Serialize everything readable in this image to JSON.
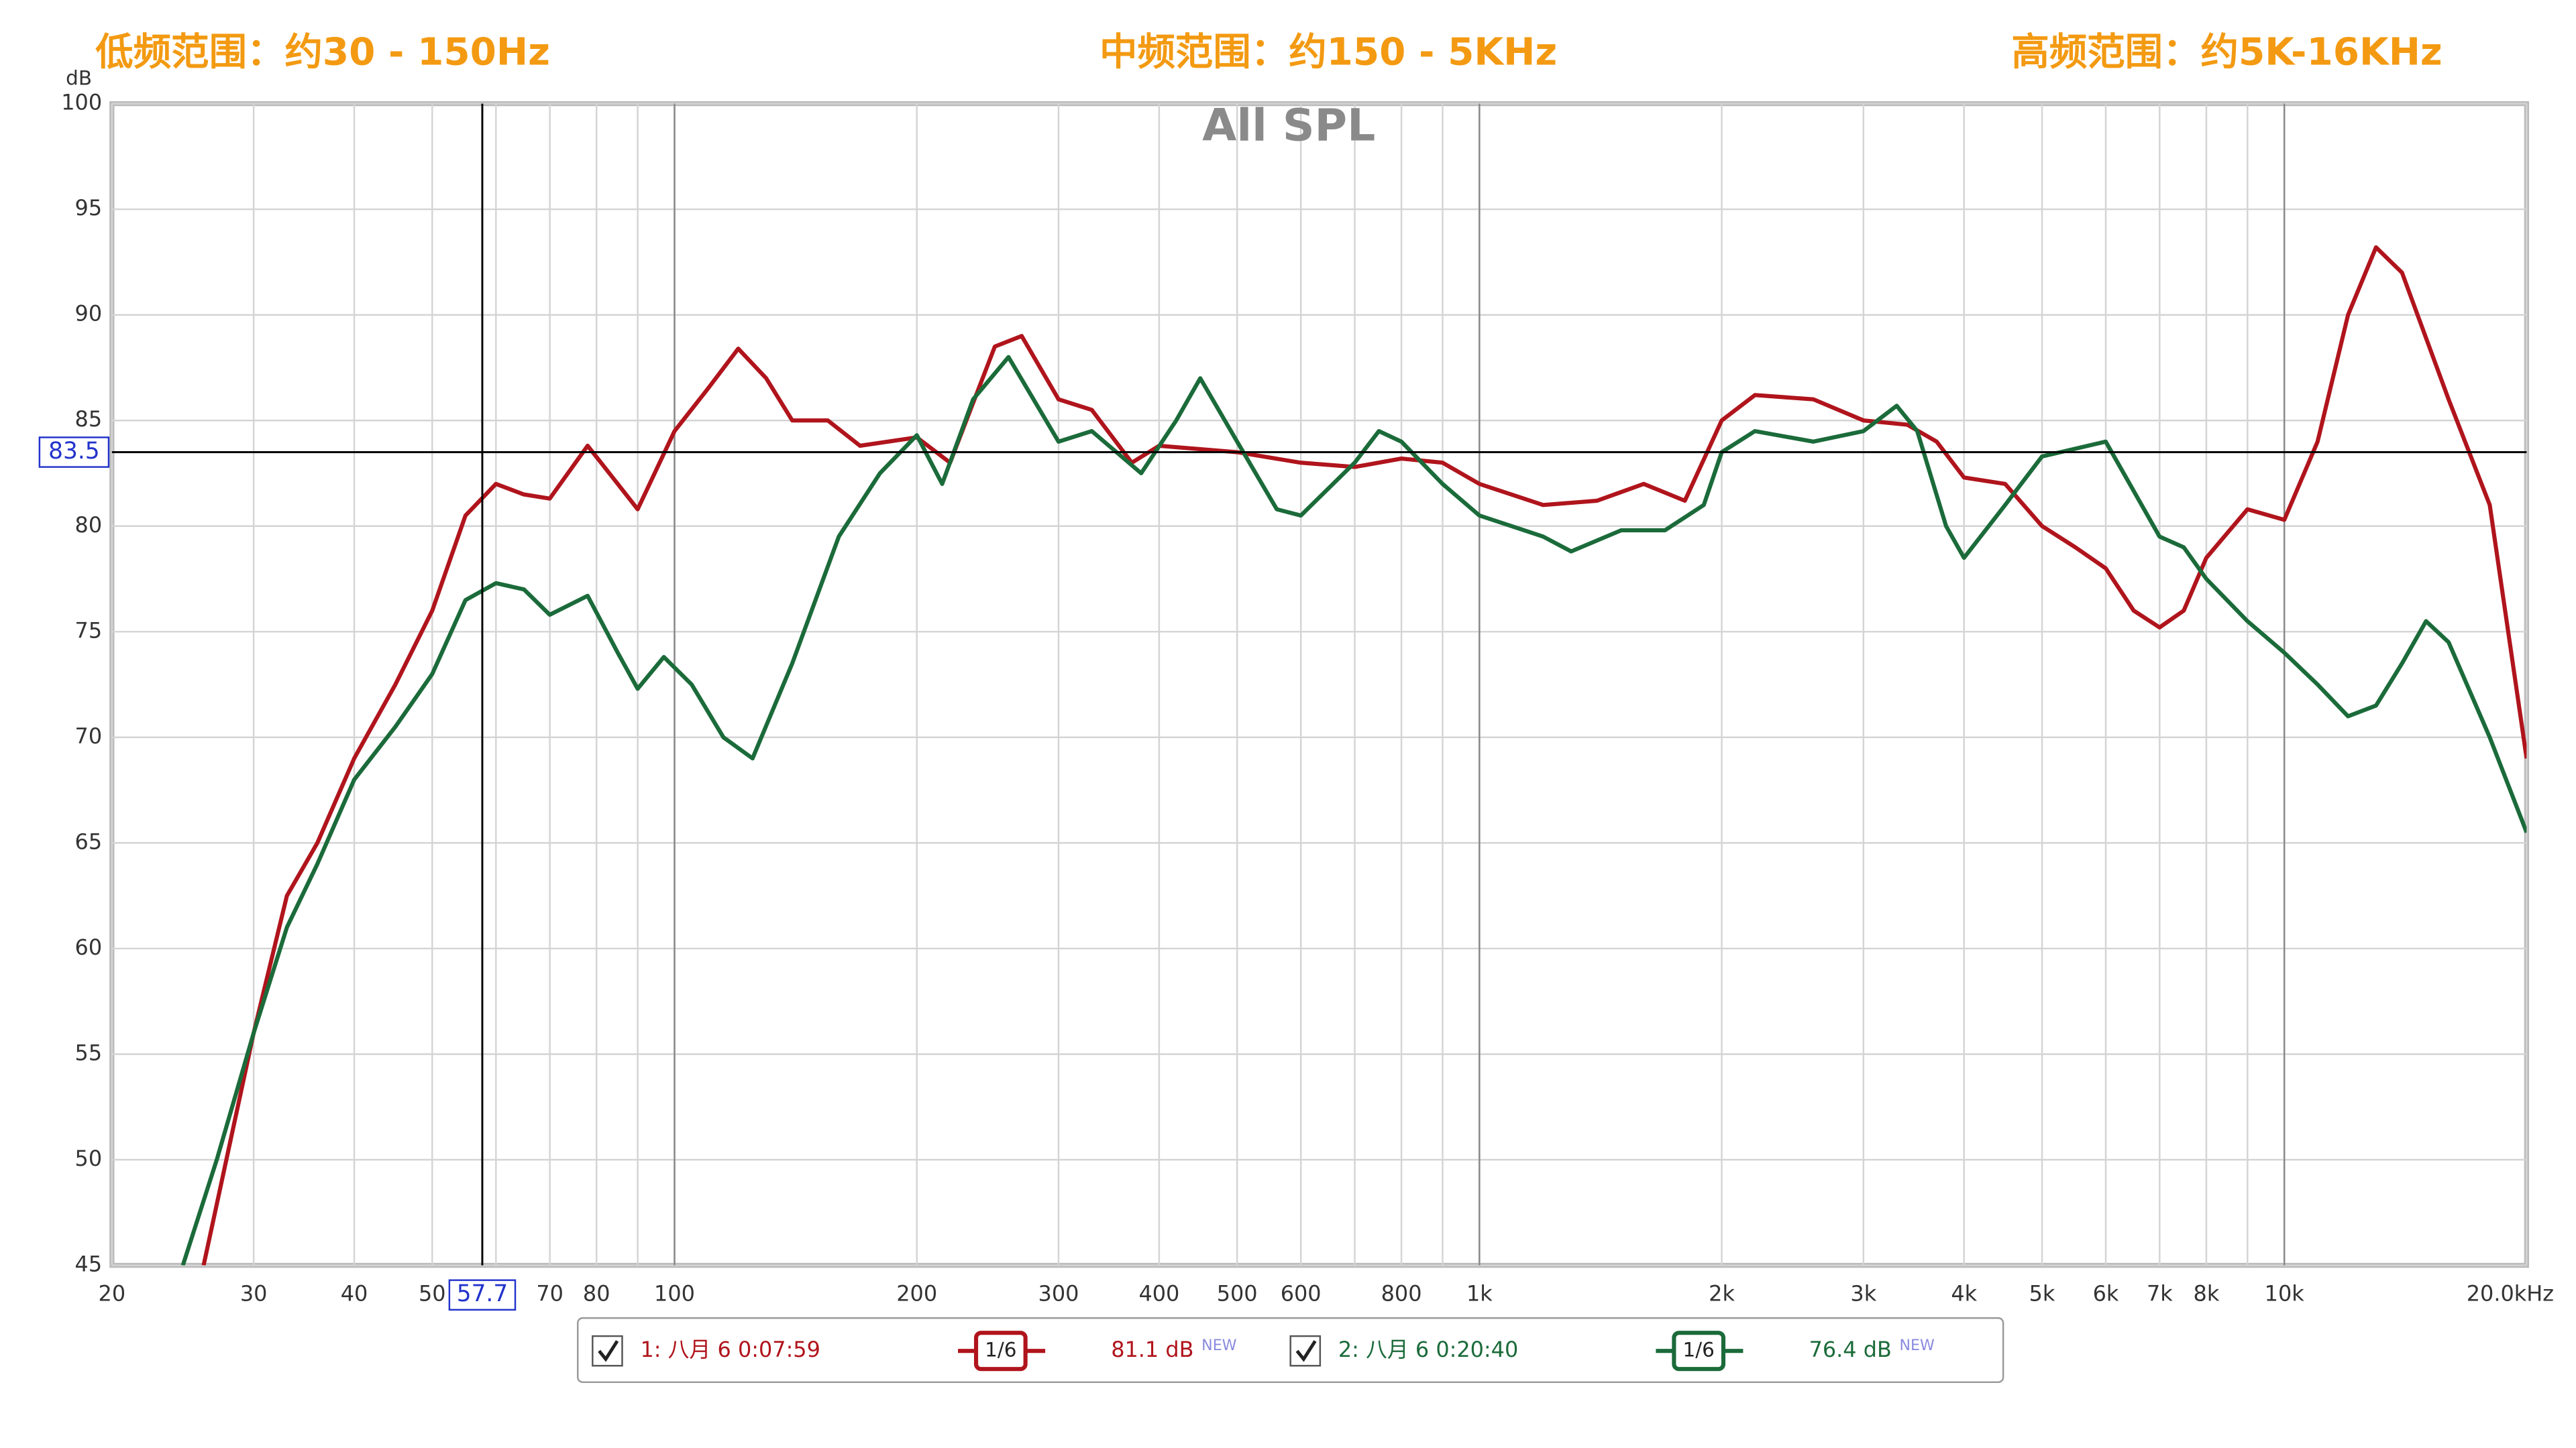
{
  "chart_data": {
    "type": "line",
    "title": "All SPL",
    "y_label": "dB",
    "annotations": [
      "低频范围：约30 - 150Hz",
      "中频范围：约150 - 5KHz",
      "高频范围：约5K-16KHz"
    ],
    "log_x": true,
    "grid": true,
    "xlim": [
      20,
      20000
    ],
    "ylim": [
      45,
      100
    ],
    "xticks": [
      20,
      30,
      40,
      50,
      70,
      80,
      100,
      200,
      300,
      400,
      500,
      600,
      800,
      {
        "value": 1000,
        "label": "1k"
      },
      {
        "value": 2000,
        "label": "2k"
      },
      {
        "value": 3000,
        "label": "3k"
      },
      {
        "value": 4000,
        "label": "4k"
      },
      {
        "value": 5000,
        "label": "5k"
      },
      {
        "value": 6000,
        "label": "6k"
      },
      {
        "value": 7000,
        "label": "7k"
      },
      {
        "value": 8000,
        "label": "8k"
      },
      {
        "value": 10000,
        "label": "10k"
      },
      {
        "value": 20000,
        "label": "20.0kHz"
      }
    ],
    "x_minor_grid": [
      60,
      90,
      700,
      900,
      9000
    ],
    "yticks": [
      45,
      50,
      55,
      60,
      65,
      70,
      75,
      80,
      85,
      90,
      95,
      100
    ],
    "cursor": {
      "x": 57.7,
      "y": 83.5
    },
    "smoothing": "1/6",
    "series": [
      {
        "name": "1: 八月 6 0:07:59",
        "color": "#b0141c",
        "level": "81.1 dB",
        "level_tag": "NEW",
        "x": [
          26,
          30,
          33,
          36,
          40,
          45,
          50,
          55,
          60,
          65,
          70,
          78,
          85,
          90,
          100,
          110,
          120,
          130,
          140,
          155,
          170,
          200,
          220,
          250,
          270,
          300,
          330,
          370,
          400,
          500,
          600,
          700,
          800,
          900,
          1000,
          1200,
          1400,
          1600,
          1800,
          2000,
          2200,
          2600,
          3000,
          3400,
          3700,
          4000,
          4500,
          5000,
          5500,
          6000,
          6500,
          7000,
          7500,
          8000,
          9000,
          10000,
          11000,
          12000,
          13000,
          14000,
          16000,
          18000,
          20000
        ],
        "values": [
          45,
          56,
          62.5,
          65,
          69,
          72.5,
          76,
          80.5,
          82,
          81.5,
          81.3,
          83.8,
          82,
          80.8,
          84.5,
          86.5,
          88.4,
          87,
          85,
          85,
          83.8,
          84.2,
          83,
          88.5,
          89,
          86,
          85.5,
          83,
          83.8,
          83.5,
          83,
          82.8,
          83.2,
          83,
          82,
          81,
          81.2,
          82,
          81.2,
          85,
          86.2,
          86,
          85,
          84.8,
          84,
          82.3,
          82,
          80,
          79,
          78,
          76,
          75.2,
          76,
          78.5,
          80.8,
          80.3,
          84,
          90,
          93.2,
          92,
          86,
          81,
          69
        ]
      },
      {
        "name": "2: 八月 6 0:20:40",
        "color": "#1b6b3a",
        "level": "76.4 dB",
        "level_tag": "NEW",
        "x": [
          24.5,
          27,
          30,
          33,
          36,
          40,
          45,
          50,
          55,
          60,
          65,
          70,
          78,
          85,
          90,
          97,
          105,
          115,
          125,
          140,
          160,
          180,
          200,
          215,
          235,
          260,
          300,
          330,
          380,
          420,
          450,
          500,
          560,
          600,
          700,
          750,
          800,
          900,
          1000,
          1200,
          1300,
          1500,
          1700,
          1900,
          2000,
          2200,
          2600,
          3000,
          3300,
          3500,
          3800,
          4000,
          4500,
          5000,
          6000,
          7000,
          7500,
          8000,
          9000,
          10000,
          11000,
          12000,
          13000,
          14000,
          15000,
          16000,
          18000,
          20000
        ],
        "values": [
          45,
          50,
          56,
          61,
          64,
          68,
          70.5,
          73,
          76.5,
          77.3,
          77,
          75.8,
          76.7,
          74,
          72.3,
          73.8,
          72.5,
          70,
          69,
          73.5,
          79.5,
          82.5,
          84.3,
          82,
          86,
          88,
          84,
          84.5,
          82.5,
          85,
          87,
          84,
          80.8,
          80.5,
          83,
          84.5,
          84,
          82,
          80.5,
          79.5,
          78.8,
          79.8,
          79.8,
          81,
          83.5,
          84.5,
          84,
          84.5,
          85.7,
          84.5,
          80,
          78.5,
          81,
          83.3,
          84,
          79.5,
          79,
          77.5,
          75.5,
          74,
          72.5,
          71,
          71.5,
          73.5,
          75.5,
          74.5,
          70,
          65.5
        ]
      }
    ]
  }
}
